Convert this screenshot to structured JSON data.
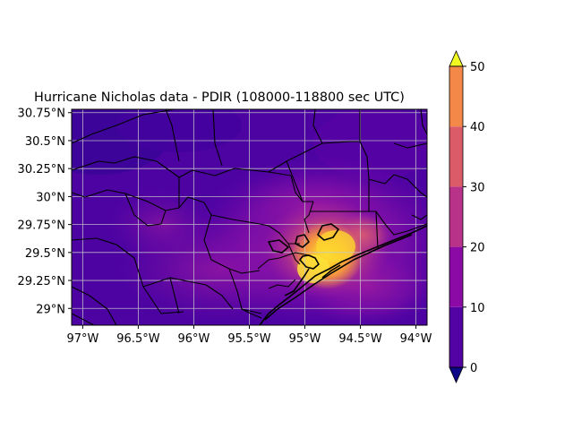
{
  "title": "Hurricane Nicholas data - PDIR (108000-118800 sec UTC)",
  "map": {
    "lon_range": [
      -97.1,
      -93.9
    ],
    "lat_range": [
      28.85,
      30.78
    ],
    "lon_ticks": [
      {
        "value": -97.0,
        "label": "97°W"
      },
      {
        "value": -96.5,
        "label": "96.5°W"
      },
      {
        "value": -96.0,
        "label": "96°W"
      },
      {
        "value": -95.5,
        "label": "95.5°W"
      },
      {
        "value": -95.0,
        "label": "95°W"
      },
      {
        "value": -94.5,
        "label": "94.5°W"
      },
      {
        "value": -94.0,
        "label": "94°W"
      }
    ],
    "lat_ticks": [
      {
        "value": 30.75,
        "label": "30.75°N"
      },
      {
        "value": 30.5,
        "label": "30.5°N"
      },
      {
        "value": 30.25,
        "label": "30.25°N"
      },
      {
        "value": 30.0,
        "label": "30°N"
      },
      {
        "value": 29.75,
        "label": "29.75°N"
      },
      {
        "value": 29.5,
        "label": "29.5°N"
      },
      {
        "value": 29.25,
        "label": "29.25°N"
      },
      {
        "value": 29.0,
        "label": "29°N"
      }
    ],
    "grid": true,
    "precip_center": {
      "lon": -94.9,
      "lat": 29.5
    }
  },
  "colorbar": {
    "levels": [
      0,
      10,
      20,
      30,
      40,
      50
    ],
    "tick_labels": [
      "0",
      "10",
      "20",
      "30",
      "40",
      "50"
    ],
    "colors": [
      "#5302a3",
      "#8b0aa5",
      "#b83289",
      "#db5c68",
      "#f48849",
      "#febd2a"
    ],
    "under_color": "#0d0887",
    "over_color": "#f0f921",
    "extend": "both"
  }
}
